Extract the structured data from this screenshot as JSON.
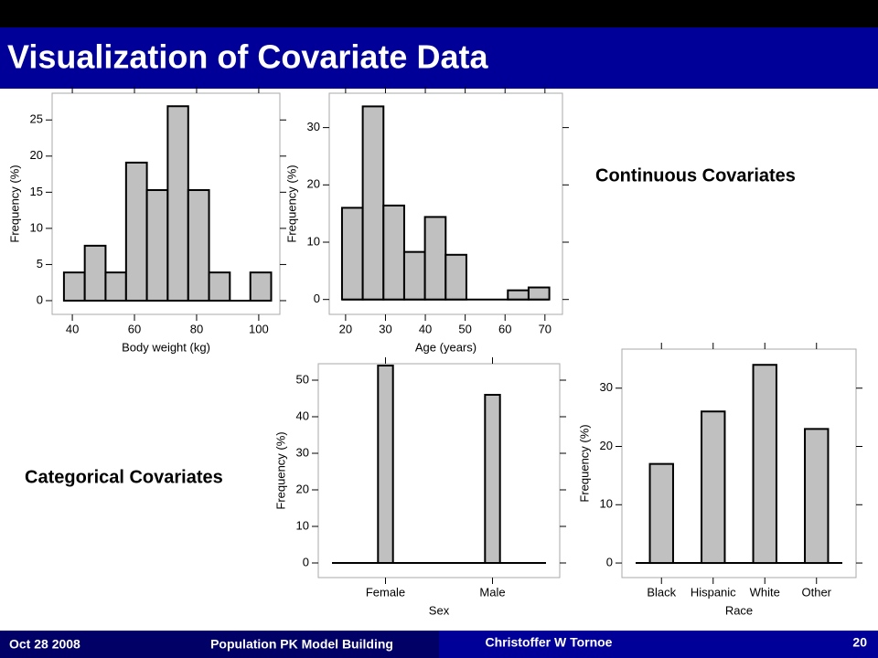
{
  "slide": {
    "title": "Visualization of Covariate Data",
    "continuous_label": "Continuous Covariates",
    "categorical_label": "Categorical Covariates",
    "footer": {
      "date": "Oct 28 2008",
      "topic": "Population PK Model Building",
      "author": "Christoffer W Tornoe",
      "page": "20"
    }
  },
  "chart_data": [
    {
      "type": "histogram",
      "xlabel": "Body weight (kg)",
      "ylabel": "Frequency (%)",
      "color": "#c0c0c0",
      "bins": [
        37.3,
        44,
        50.7,
        57.3,
        64,
        70.7,
        77.3,
        84,
        90.7,
        97.3,
        104
      ],
      "values": [
        3.9,
        7.6,
        3.9,
        19.1,
        15.3,
        26.9,
        15.3,
        3.9,
        0,
        3.9
      ],
      "xlim": [
        33.5,
        106.8
      ],
      "xticks": [
        40,
        60,
        80,
        100
      ],
      "ylim": [
        -1.9,
        28.7
      ],
      "yticks": [
        0,
        5,
        10,
        15,
        20,
        25
      ]
    },
    {
      "type": "histogram",
      "xlabel": "Age (years)",
      "ylabel": "Frequency (%)",
      "color": "#c0c0c0",
      "bins": [
        19.1,
        24.3,
        29.5,
        34.7,
        39.9,
        45.1,
        50.3,
        55.5,
        60.7,
        65.9,
        71.1
      ],
      "values": [
        16,
        33.7,
        16.4,
        8.3,
        14.4,
        7.8,
        0,
        0,
        1.6,
        2.1
      ],
      "xlim": [
        15.9,
        74.4
      ],
      "xticks": [
        20,
        30,
        40,
        50,
        60,
        70
      ],
      "ylim": [
        -2.6,
        36
      ],
      "yticks": [
        0,
        10,
        20,
        30
      ]
    },
    {
      "type": "bar",
      "xlabel": "Sex",
      "ylabel": "Frequency (%)",
      "color": "#c0c0c0",
      "categories": [
        "Female",
        "Male"
      ],
      "values": [
        54,
        46
      ],
      "ylim": [
        -4,
        54.5
      ],
      "yticks": [
        0,
        10,
        20,
        30,
        40,
        50
      ]
    },
    {
      "type": "bar",
      "xlabel": "Race",
      "ylabel": "Frequency (%)",
      "color": "#c0c0c0",
      "categories": [
        "Black",
        "Hispanic",
        "White",
        "Other"
      ],
      "values": [
        17,
        26,
        34,
        23
      ],
      "ylim": [
        -2.5,
        36.7
      ],
      "yticks": [
        0,
        10,
        20,
        30
      ]
    }
  ]
}
